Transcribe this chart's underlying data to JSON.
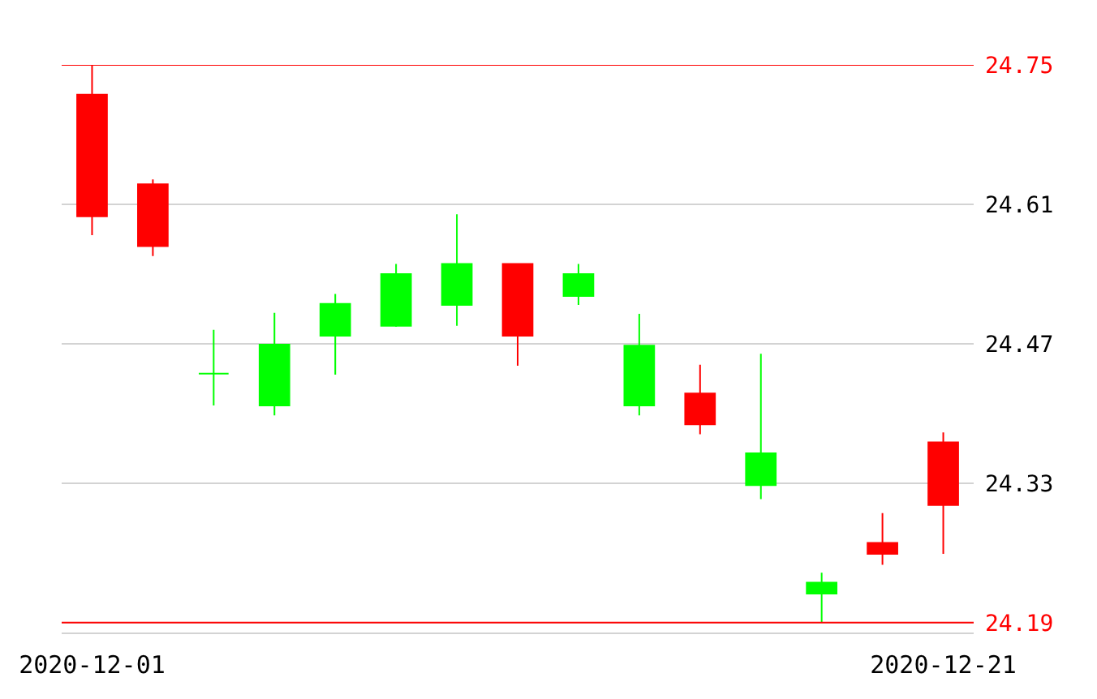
{
  "chart_data": {
    "type": "candlestick",
    "categories": [
      "2020-12-01",
      null,
      null,
      null,
      null,
      null,
      null,
      null,
      null,
      null,
      null,
      null,
      null,
      null,
      "2020-12-21"
    ],
    "ohlc": [
      [
        24.72,
        24.75,
        24.579,
        24.598
      ],
      [
        24.63,
        24.635,
        24.558,
        24.568
      ],
      [
        24.44,
        24.484,
        24.408,
        24.44
      ],
      [
        24.408,
        24.501,
        24.398,
        24.469
      ],
      [
        24.478,
        24.52,
        24.439,
        24.51
      ],
      [
        24.488,
        24.55,
        24.487,
        24.54
      ],
      [
        24.509,
        24.6,
        24.488,
        24.55
      ],
      [
        24.55,
        24.55,
        24.448,
        24.478
      ],
      [
        24.518,
        24.55,
        24.509,
        24.54
      ],
      [
        24.408,
        24.5,
        24.398,
        24.468
      ],
      [
        24.42,
        24.449,
        24.379,
        24.389
      ],
      [
        24.328,
        24.46,
        24.314,
        24.36
      ],
      [
        24.219,
        24.24,
        24.19,
        24.23
      ],
      [
        24.27,
        24.3,
        24.248,
        24.259
      ],
      [
        24.371,
        24.381,
        24.259,
        24.308
      ]
    ],
    "colors": [
      "#ff0000",
      "#ff0000",
      "#00ff00",
      "#00ff00",
      "#00ff00",
      "#00ff00",
      "#00ff00",
      "#ff0000",
      "#00ff00",
      "#00ff00",
      "#ff0000",
      "#00ff00",
      "#00ff00",
      "#ff0000",
      "#ff0000"
    ],
    "ylim": [
      24.18,
      24.75
    ],
    "yticks": [
      24.19,
      24.33,
      24.47,
      24.61,
      24.75
    ],
    "grid": "y",
    "ref_lines": [
      {
        "axis": "y",
        "value": 24.75,
        "color": "#ff0000"
      },
      {
        "axis": "y",
        "value": 24.19,
        "color": "#ff0000"
      }
    ]
  }
}
